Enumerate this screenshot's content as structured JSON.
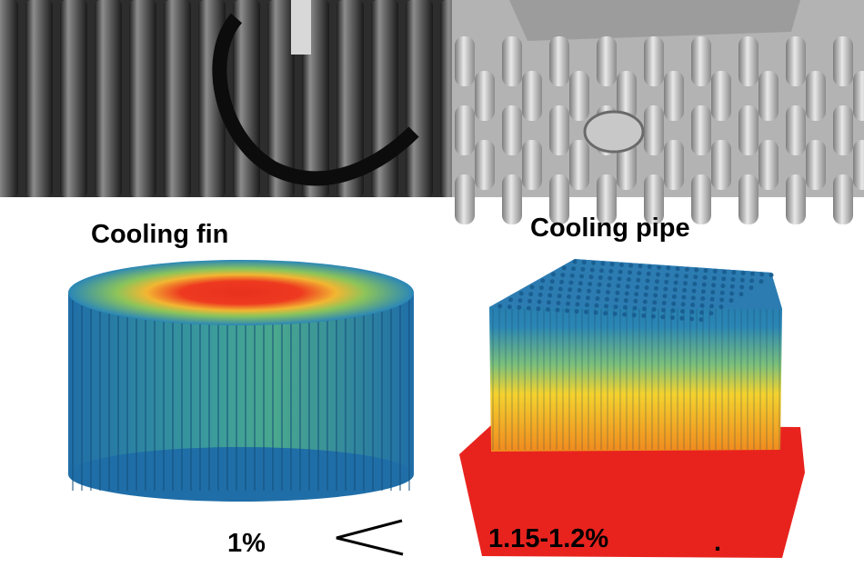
{
  "labels": {
    "left_title": "Cooling fin",
    "right_title": "Cooling pipe",
    "left_value": "1%",
    "right_value": "1.15-1.2%",
    "mark": "."
  }
}
